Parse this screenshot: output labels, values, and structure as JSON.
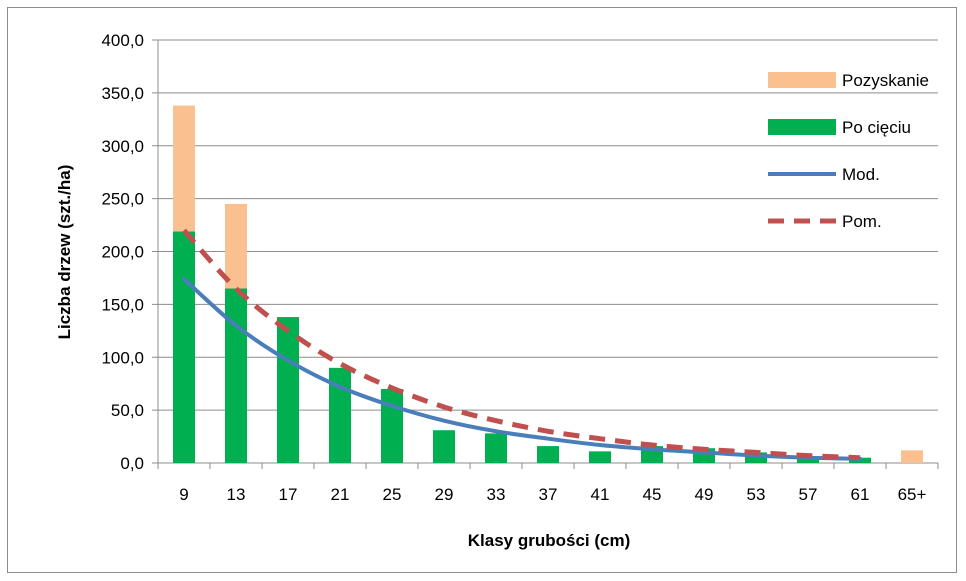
{
  "chart_data": {
    "type": "bar",
    "xlabel": "Klasy grubości (cm)",
    "ylabel": "Liczba drzew (szt./ha)",
    "ylim": [
      0,
      400
    ],
    "yticks": [
      "0,0",
      "50,0",
      "100,0",
      "150,0",
      "200,0",
      "250,0",
      "300,0",
      "350,0",
      "400,0"
    ],
    "grid": "horizontal",
    "legend_position": "right",
    "stacked": true,
    "categories": [
      "9",
      "13",
      "17",
      "21",
      "25",
      "29",
      "33",
      "37",
      "41",
      "45",
      "49",
      "53",
      "57",
      "61",
      "65+"
    ],
    "series": [
      {
        "name": "Po cięciu",
        "kind": "bar",
        "color": "#00b050",
        "values": [
          219,
          165,
          138,
          90,
          70,
          31,
          28,
          16,
          11,
          16,
          14,
          10,
          4,
          5,
          0
        ]
      },
      {
        "name": "Pozyskanie",
        "kind": "bar",
        "color": "#fac090",
        "values": [
          119,
          80,
          0,
          0,
          0,
          0,
          0,
          0,
          0,
          0,
          0,
          0,
          0,
          0,
          12
        ]
      },
      {
        "name": "Mod.",
        "kind": "line",
        "color": "#4a7ebb",
        "dash": false,
        "values": [
          174,
          130,
          97,
          72,
          54,
          40,
          30,
          23,
          17,
          13,
          10,
          7,
          5,
          4,
          null
        ]
      },
      {
        "name": "Pom.",
        "kind": "line",
        "color": "#c0504d",
        "dash": true,
        "values": [
          220,
          165,
          125,
          94,
          71,
          53,
          40,
          30,
          23,
          17,
          13,
          10,
          7,
          5,
          null
        ]
      }
    ],
    "legend_order": [
      "Pozyskanie",
      "Po cięciu",
      "Mod.",
      "Pom."
    ]
  }
}
